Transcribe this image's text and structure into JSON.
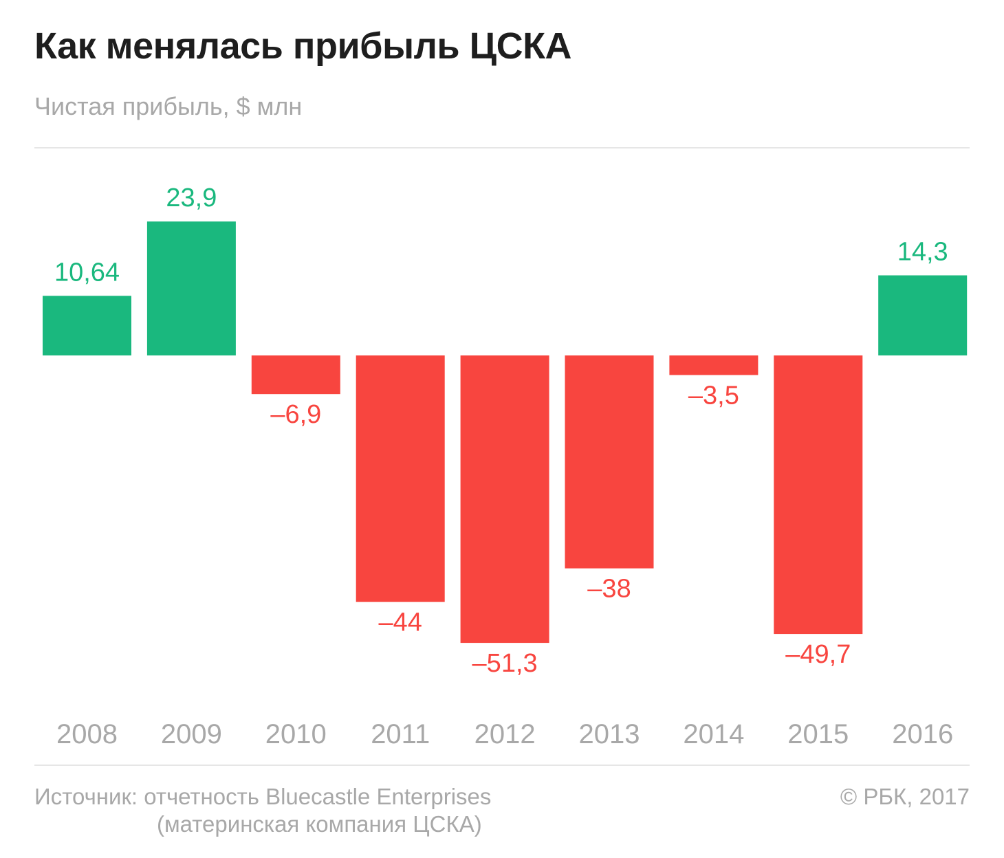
{
  "header": {
    "title": "Как менялась прибыль ЦСКА",
    "subtitle": "Чистая прибыль, $ млн"
  },
  "footer": {
    "source_line1": "Источник: отчетность Bluecastle Enterprises",
    "source_line2": "(материнская компания ЦСКА)",
    "copyright": "© РБК, 2017"
  },
  "colors": {
    "positive": "#1ab87e",
    "negative": "#f8453f",
    "axis_label": "#a8a8a8"
  },
  "chart_data": {
    "type": "bar",
    "title": "Как менялась прибыль ЦСКА",
    "subtitle": "Чистая прибыль, $ млн",
    "xlabel": "",
    "ylabel": "",
    "categories": [
      "2008",
      "2009",
      "2010",
      "2011",
      "2012",
      "2013",
      "2014",
      "2015",
      "2016"
    ],
    "values": [
      10.64,
      23.9,
      -6.9,
      -44,
      -51.3,
      -38,
      -3.5,
      -49.7,
      14.3
    ],
    "value_labels": [
      "10,64",
      "23,9",
      "–6,9",
      "–44",
      "–51,3",
      "–38",
      "–3,5",
      "–49,7",
      "14,3"
    ],
    "ylim": [
      -51.3,
      23.9
    ],
    "grid": false,
    "legend": "none"
  }
}
